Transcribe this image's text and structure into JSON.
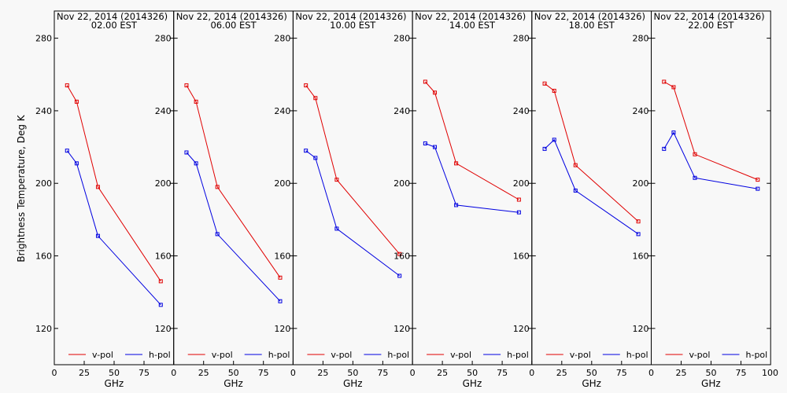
{
  "chart_data": {
    "type": "line",
    "ylabel": "Brightness Temperature, Deg K",
    "xlabel": "GHz",
    "ylim": [
      100,
      295
    ],
    "yticks": [
      120,
      160,
      200,
      240,
      280
    ],
    "xlim": [
      0,
      100
    ],
    "xticks": [
      0,
      25,
      50,
      75
    ],
    "colors": {
      "v-pol": "#e00000",
      "h-pol": "#0000e0"
    },
    "panels": [
      {
        "title": "Nov 22, 2014 (2014326)",
        "subtitle": "02.00 EST",
        "series": [
          {
            "name": "v-pol",
            "x": [
              10.7,
              18.7,
              36.5,
              89.0
            ],
            "y": [
              254,
              245,
              198,
              146
            ]
          },
          {
            "name": "h-pol",
            "x": [
              10.7,
              18.7,
              36.5,
              89.0
            ],
            "y": [
              218,
              211,
              171,
              133
            ]
          }
        ]
      },
      {
        "title": "Nov 22, 2014 (2014326)",
        "subtitle": "06.00 EST",
        "series": [
          {
            "name": "v-pol",
            "x": [
              10.7,
              18.7,
              36.5,
              89.0
            ],
            "y": [
              254,
              245,
              198,
              148
            ]
          },
          {
            "name": "h-pol",
            "x": [
              10.7,
              18.7,
              36.5,
              89.0
            ],
            "y": [
              217,
              211,
              172,
              135
            ]
          }
        ]
      },
      {
        "title": "Nov 22, 2014 (2014326)",
        "subtitle": "10.00 EST",
        "series": [
          {
            "name": "v-pol",
            "x": [
              10.7,
              18.7,
              36.5,
              89.0
            ],
            "y": [
              254,
              247,
              202,
              161
            ]
          },
          {
            "name": "h-pol",
            "x": [
              10.7,
              18.7,
              36.5,
              89.0
            ],
            "y": [
              218,
              214,
              175,
              149
            ]
          }
        ]
      },
      {
        "title": "Nov 22, 2014 (2014326)",
        "subtitle": "14.00 EST",
        "series": [
          {
            "name": "v-pol",
            "x": [
              10.7,
              18.7,
              36.5,
              89.0
            ],
            "y": [
              256,
              250,
              211,
              191
            ]
          },
          {
            "name": "h-pol",
            "x": [
              10.7,
              18.7,
              36.5,
              89.0
            ],
            "y": [
              222,
              220,
              188,
              184
            ]
          }
        ]
      },
      {
        "title": "Nov 22, 2014 (2014326)",
        "subtitle": "18.00 EST",
        "series": [
          {
            "name": "v-pol",
            "x": [
              10.7,
              18.7,
              36.5,
              89.0
            ],
            "y": [
              255,
              251,
              210,
              179
            ]
          },
          {
            "name": "h-pol",
            "x": [
              10.7,
              18.7,
              36.5,
              89.0
            ],
            "y": [
              219,
              224,
              196,
              172
            ]
          }
        ]
      },
      {
        "title": "Nov 22, 2014 (2014326)",
        "subtitle": "22.00 EST",
        "series": [
          {
            "name": "v-pol",
            "x": [
              10.7,
              18.7,
              36.5,
              89.0
            ],
            "y": [
              256,
              253,
              216,
              202
            ]
          },
          {
            "name": "h-pol",
            "x": [
              10.7,
              18.7,
              36.5,
              89.0
            ],
            "y": [
              219,
              228,
              203,
              197
            ]
          }
        ]
      }
    ],
    "legend": [
      "v-pol",
      "h-pol"
    ]
  }
}
